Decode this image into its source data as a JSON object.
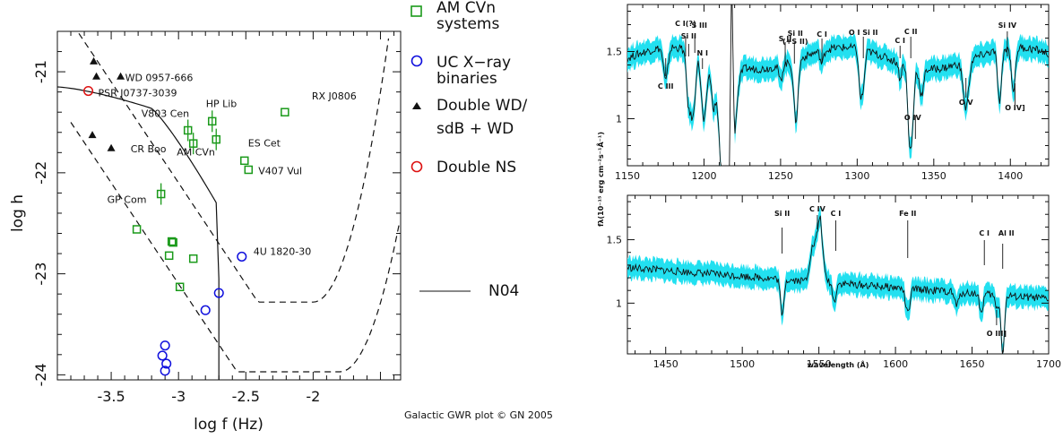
{
  "chart_data": [
    {
      "type": "scatter",
      "xlabel": "log f (Hz)",
      "ylabel": "log h",
      "xlim": [
        -3.9,
        -1.35
      ],
      "ylim": [
        -24.05,
        -20.6
      ],
      "xticks": [
        "-3.5",
        "-3",
        "-2.5",
        "-2"
      ],
      "yticks": [
        "-21",
        "-22",
        "-23",
        "-24"
      ],
      "credit": "Galactic GWR plot © GN 2005",
      "legend": [
        {
          "label": "AM CVn\nsystems",
          "marker": "open-square",
          "color": "#1a9a1a"
        },
        {
          "label": "UC X−ray\nbinaries",
          "marker": "open-circle",
          "color": "#1010dd"
        },
        {
          "label": "Double WD/\nsdB + WD",
          "marker": "filled-triangle",
          "color": "#111111"
        },
        {
          "label": "Double NS",
          "marker": "open-circle",
          "color": "#dd1111"
        }
      ],
      "curve_label": "N04",
      "series": [
        {
          "name": "AM CVn systems",
          "color": "#1a9a1a",
          "points": [
            {
              "x": -2.21,
              "y": -21.4,
              "label": "RX J0806"
            },
            {
              "x": -2.93,
              "y": -21.58,
              "label": "V803 Cen"
            },
            {
              "x": -2.75,
              "y": -21.49,
              "label": "HP Lib"
            },
            {
              "x": -2.89,
              "y": -21.71,
              "label": "CR Boo"
            },
            {
              "x": -2.72,
              "y": -21.67,
              "label": "AM CVn"
            },
            {
              "x": -2.51,
              "y": -21.88,
              "label": "ES Cet"
            },
            {
              "x": -2.48,
              "y": -21.97,
              "label": "V407 Vul"
            },
            {
              "x": -3.13,
              "y": -22.21,
              "label": "GP Com"
            },
            {
              "x": -3.31,
              "y": -22.56
            },
            {
              "x": -3.05,
              "y": -22.68
            },
            {
              "x": -3.04,
              "y": -22.69
            },
            {
              "x": -3.07,
              "y": -22.82
            },
            {
              "x": -2.89,
              "y": -22.85
            },
            {
              "x": -2.99,
              "y": -23.13
            }
          ]
        },
        {
          "name": "UC X-ray binaries",
          "color": "#1010dd",
          "points": [
            {
              "x": -2.53,
              "y": -22.83,
              "label": "4U 1820-30"
            },
            {
              "x": -2.7,
              "y": -23.19
            },
            {
              "x": -2.8,
              "y": -23.36
            },
            {
              "x": -3.1,
              "y": -23.71
            },
            {
              "x": -3.12,
              "y": -23.81
            },
            {
              "x": -3.09,
              "y": -23.89
            },
            {
              "x": -3.1,
              "y": -23.96
            }
          ]
        },
        {
          "name": "Double WD/sdB + WD",
          "color": "#111111",
          "points": [
            {
              "x": -3.63,
              "y": -20.9
            },
            {
              "x": -3.61,
              "y": -21.05
            },
            {
              "x": -3.43,
              "y": -21.05,
              "label": "WD 0957-666"
            },
            {
              "x": -3.64,
              "y": -21.63
            },
            {
              "x": -3.5,
              "y": -21.76
            }
          ]
        },
        {
          "name": "Double NS",
          "color": "#dd1111",
          "points": [
            {
              "x": -3.67,
              "y": -21.19,
              "label": "PSR J0737-3039"
            }
          ]
        }
      ]
    },
    {
      "type": "line",
      "xlabel": "",
      "ylabel": "fλ(10⁻¹⁵ erg cm⁻²s⁻¹Å⁻¹)",
      "xlim": [
        1150,
        1425
      ],
      "ylim": [
        0.65,
        1.85
      ],
      "xticks": [
        "1150",
        "1200",
        "1250",
        "1300",
        "1350",
        "1400"
      ],
      "yticks": [
        "1.5",
        "1"
      ],
      "error_band_color": "#22e0f0",
      "line_color": "#111111",
      "annotations": [
        "C III",
        "C I(?)",
        "Si II",
        "S III",
        "N I",
        "S II",
        "Si II",
        "(+S II)",
        "C I",
        "O I Si II",
        "C I",
        "C II",
        "O IV",
        "O V",
        "Si IV",
        "O IV]"
      ]
    },
    {
      "type": "line",
      "xlabel": "wavelength (Å)",
      "ylabel": "",
      "xlim": [
        1425,
        1700
      ],
      "ylim": [
        0.6,
        1.85
      ],
      "xticks": [
        "1450",
        "1500",
        "1550",
        "1600",
        "1650",
        "1700"
      ],
      "yticks": [
        "1.5",
        "1"
      ],
      "error_band_color": "#22e0f0",
      "line_color": "#111111",
      "annotations": [
        "Si II",
        "C IV",
        "C I",
        "Fe II",
        "C I",
        "Al II",
        "O III]"
      ]
    }
  ]
}
